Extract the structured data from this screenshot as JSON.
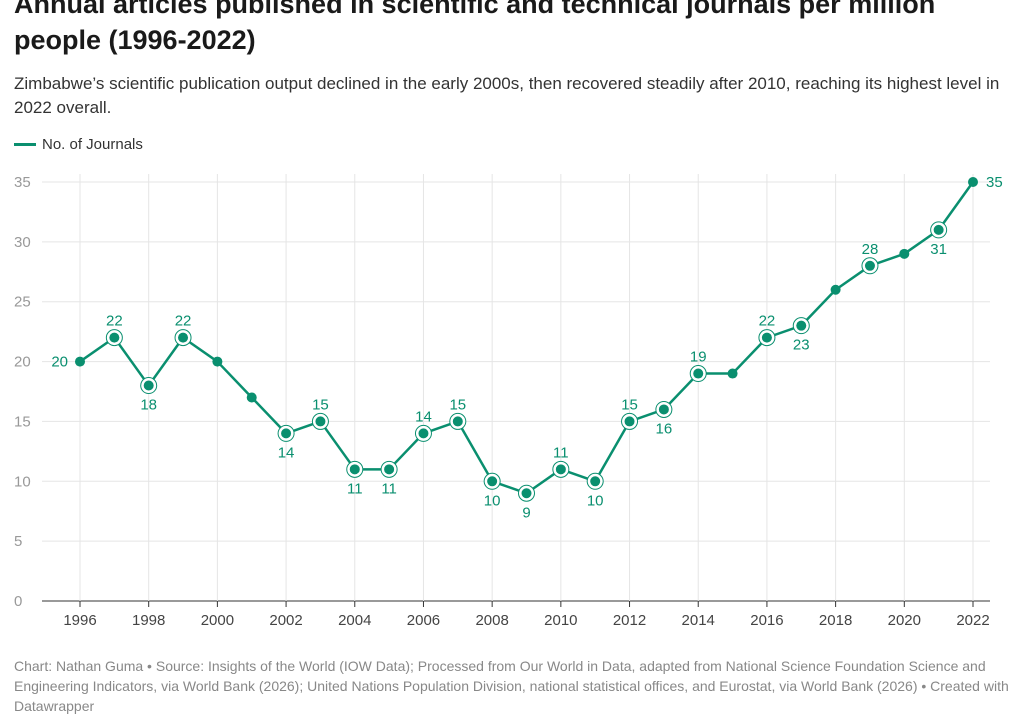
{
  "header": {
    "title": "Annual articles published in scientific and technical journals per million people (1996-2022)",
    "subtitle": "Zimbabwe’s scientific publication output declined in the early 2000s, then recovered steadily after 2010, reaching its highest level in 2022 overall."
  },
  "footer": "Chart: Nathan Guma • Source: Insights of the World (IOW Data); Processed from Our World in Data, adapted from National Science Foundation Science and Engineering Indicators, via World Bank (2026); United Nations Population Division, national statistical offices, and Eurostat, via World Bank (2026) • Created with Datawrapper",
  "chart_data": {
    "type": "line",
    "title": "Annual articles published in scientific and technical journals per million people (1996-2022)",
    "x": [
      1996,
      1997,
      1998,
      1999,
      2000,
      2001,
      2002,
      2003,
      2004,
      2005,
      2006,
      2007,
      2008,
      2009,
      2010,
      2011,
      2012,
      2013,
      2014,
      2015,
      2016,
      2017,
      2018,
      2019,
      2020,
      2021,
      2022
    ],
    "series": [
      {
        "name": "No. of Journals",
        "color": "#0a8f6f",
        "values": [
          20,
          22,
          18,
          22,
          20,
          17,
          14,
          15,
          11,
          11,
          14,
          15,
          10,
          9,
          11,
          10,
          15,
          16,
          19,
          19,
          22,
          23,
          26,
          28,
          29,
          31,
          35
        ]
      }
    ],
    "labeled_points": {
      "1996": "left",
      "1997": "above",
      "1998": "below",
      "1999": "above",
      "2002": "below",
      "2003": "above",
      "2004": "below",
      "2005": "below",
      "2006": "above",
      "2007": "above",
      "2008": "below",
      "2009": "below",
      "2010": "above",
      "2011": "below",
      "2012": "above",
      "2013": "below",
      "2014": "above",
      "2016": "above",
      "2017": "below",
      "2019": "above",
      "2021": "below",
      "2022": "right"
    },
    "highlighted_years": [
      1997,
      1998,
      1999,
      2002,
      2003,
      2004,
      2005,
      2006,
      2007,
      2008,
      2009,
      2010,
      2011,
      2012,
      2013,
      2014,
      2016,
      2017,
      2019,
      2021
    ],
    "xticks": [
      1996,
      1998,
      2000,
      2002,
      2004,
      2006,
      2008,
      2010,
      2012,
      2014,
      2016,
      2018,
      2020,
      2022
    ],
    "yticks": [
      0,
      5,
      10,
      15,
      20,
      25,
      30,
      35
    ],
    "ylim": [
      0,
      35
    ],
    "xlim": [
      1996,
      2022
    ],
    "grid": true,
    "legend": "top-left"
  }
}
